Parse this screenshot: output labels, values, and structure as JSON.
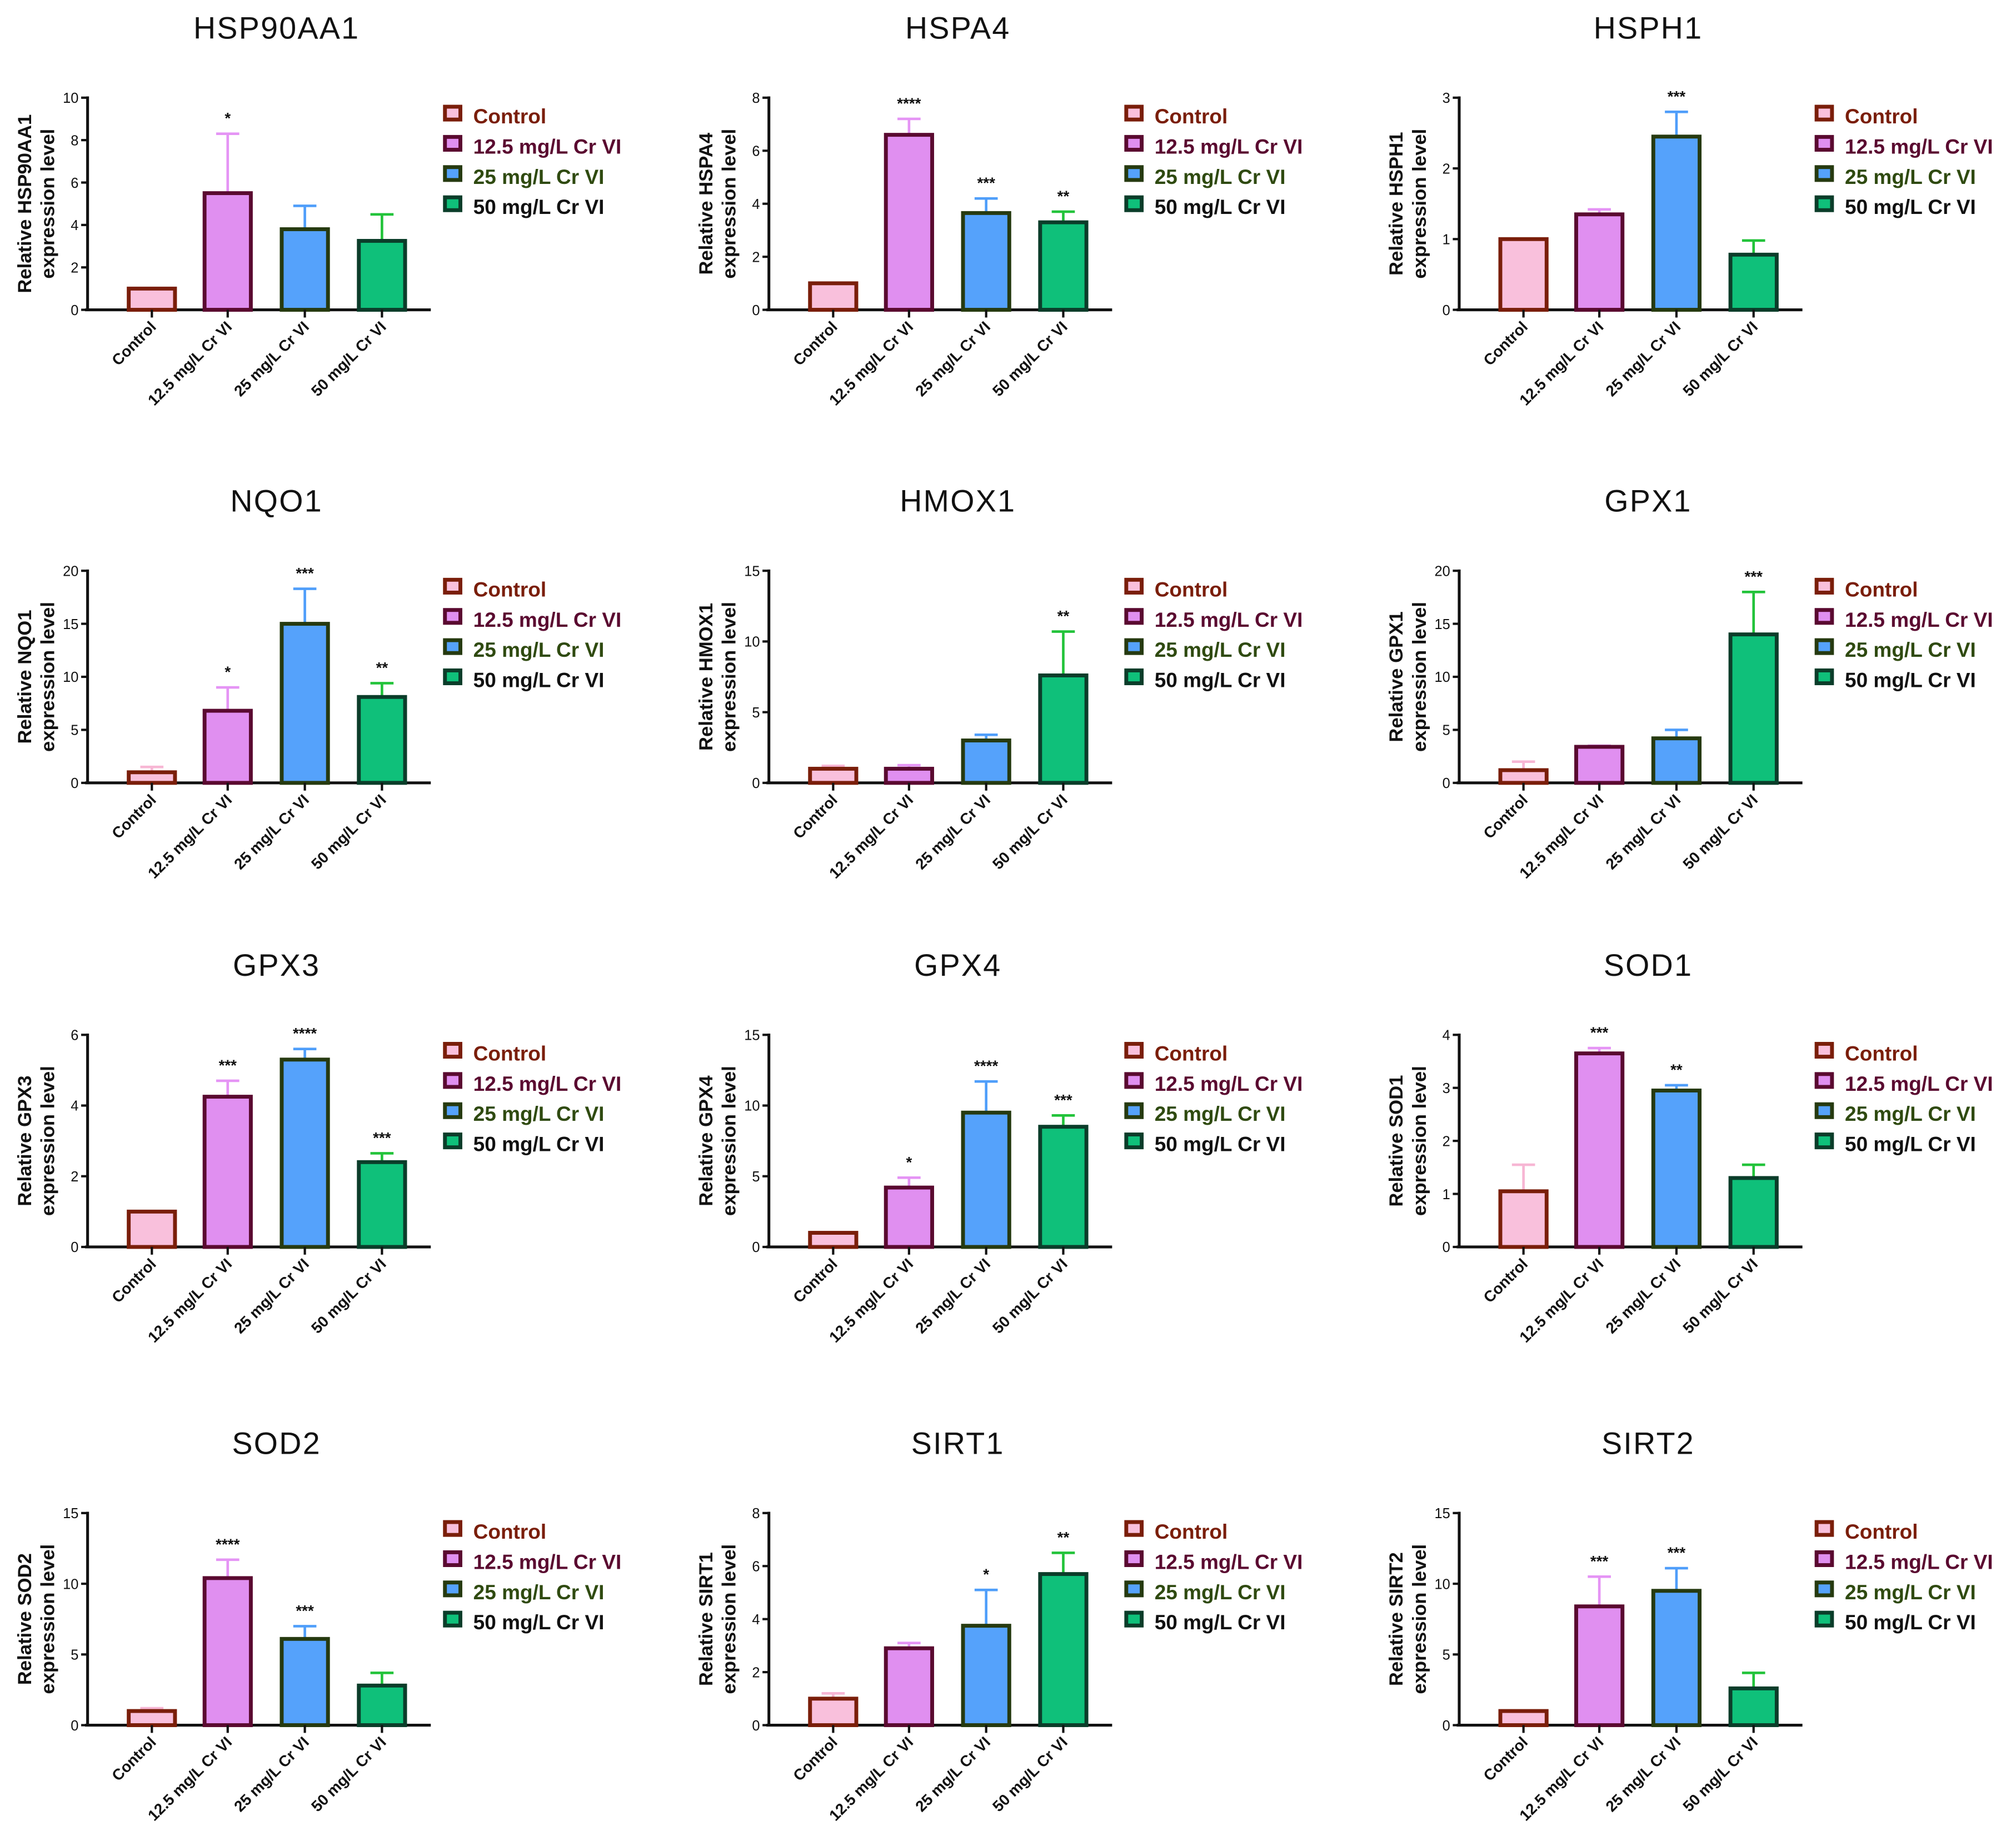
{
  "legend": {
    "items": [
      "Control",
      "12.5 mg/L Cr VI",
      "25 mg/L Cr VI",
      "50 mg/L Cr VI"
    ],
    "text_colors": [
      "#7a1e0a",
      "#5a0a30",
      "#2f4a10",
      "#111111"
    ]
  },
  "colors": {
    "fills": [
      "#f9c0dc",
      "#e08ff0",
      "#55a2fb",
      "#0fc07a"
    ],
    "borders": [
      "#7a1e0a",
      "#5a0a30",
      "#263a10",
      "#0b3d2a"
    ],
    "errors": [
      "#f7b6d4",
      "#e594f5",
      "#4f9efa",
      "#22c33a"
    ]
  },
  "chart_data": [
    {
      "type": "bar",
      "title": "HSP90AA1",
      "ylabel": [
        "Relative  HSP90AA1",
        "expression level"
      ],
      "categories": [
        "Control",
        "12.5 mg/L Cr VI",
        "25 mg/L Cr VI",
        "50 mg/L Cr VI"
      ],
      "values": [
        1,
        5.5,
        3.8,
        3.25
      ],
      "error_upper": [
        1,
        8.3,
        4.9,
        4.5
      ],
      "significance": [
        "",
        "*",
        "",
        ""
      ],
      "ylim": [
        0,
        10
      ],
      "yticks": [
        0,
        2,
        4,
        6,
        8,
        10
      ]
    },
    {
      "type": "bar",
      "title": "HSPA4",
      "ylabel": [
        "Relative  HSPA4",
        "expression level"
      ],
      "categories": [
        "Control",
        "12.5 mg/L Cr VI",
        "25 mg/L Cr VI",
        "50 mg/L Cr VI"
      ],
      "values": [
        1,
        6.6,
        3.65,
        3.3
      ],
      "error_upper": [
        1,
        7.2,
        4.2,
        3.7
      ],
      "significance": [
        "",
        "****",
        "***",
        "**"
      ],
      "ylim": [
        0,
        8
      ],
      "yticks": [
        0,
        2,
        4,
        6,
        8
      ]
    },
    {
      "type": "bar",
      "title": "HSPH1",
      "ylabel": [
        "Relative  HSPH1",
        "expression level"
      ],
      "categories": [
        "Control",
        "12.5 mg/L Cr VI",
        "25 mg/L Cr VI",
        "50 mg/L Cr VI"
      ],
      "values": [
        1,
        1.35,
        2.45,
        0.78
      ],
      "error_upper": [
        1,
        1.42,
        2.8,
        0.98
      ],
      "significance": [
        "",
        "",
        "***",
        ""
      ],
      "ylim": [
        0,
        3
      ],
      "yticks": [
        0,
        1,
        2,
        3
      ]
    },
    {
      "type": "bar",
      "title": "NQO1",
      "ylabel": [
        "Relative  NQO1",
        "expression level"
      ],
      "categories": [
        "Control",
        "12.5 mg/L Cr VI",
        "25 mg/L Cr VI",
        "50 mg/L Cr VI"
      ],
      "values": [
        1,
        6.8,
        15,
        8.1
      ],
      "error_upper": [
        1.5,
        9,
        18.3,
        9.4
      ],
      "significance": [
        "",
        "*",
        "***",
        "**"
      ],
      "ylim": [
        0,
        20
      ],
      "yticks": [
        0,
        5,
        10,
        15,
        20
      ]
    },
    {
      "type": "bar",
      "title": "HMOX1",
      "ylabel": [
        "Relative  HMOX1",
        "expression level"
      ],
      "categories": [
        "Control",
        "12.5 mg/L Cr VI",
        "25 mg/L Cr VI",
        "50 mg/L Cr VI"
      ],
      "values": [
        1,
        1,
        3,
        7.6
      ],
      "error_upper": [
        1.2,
        1.25,
        3.4,
        10.7
      ],
      "significance": [
        "",
        "",
        "",
        "**"
      ],
      "ylim": [
        0,
        15
      ],
      "yticks": [
        0,
        5,
        10,
        15
      ]
    },
    {
      "type": "bar",
      "title": "GPX1",
      "ylabel": [
        "Relative  GPX1",
        "expression level"
      ],
      "categories": [
        "Control",
        "12.5 mg/L Cr VI",
        "25 mg/L Cr VI",
        "50 mg/L Cr VI"
      ],
      "values": [
        1.2,
        3.4,
        4.2,
        14
      ],
      "error_upper": [
        2,
        3.5,
        5,
        18
      ],
      "significance": [
        "",
        "",
        "",
        "***"
      ],
      "ylim": [
        0,
        20
      ],
      "yticks": [
        0,
        5,
        10,
        15,
        20
      ]
    },
    {
      "type": "bar",
      "title": "GPX3",
      "ylabel": [
        "Relative  GPX3",
        "expression level"
      ],
      "categories": [
        "Control",
        "12.5 mg/L Cr VI",
        "25 mg/L Cr VI",
        "50 mg/L Cr VI"
      ],
      "values": [
        1,
        4.25,
        5.3,
        2.4
      ],
      "error_upper": [
        1,
        4.7,
        5.6,
        2.65
      ],
      "significance": [
        "",
        "***",
        "****",
        "***"
      ],
      "ylim": [
        0,
        6
      ],
      "yticks": [
        0,
        2,
        4,
        6
      ]
    },
    {
      "type": "bar",
      "title": "GPX4",
      "ylabel": [
        "Relative  GPX4",
        "expression level"
      ],
      "categories": [
        "Control",
        "12.5 mg/L Cr VI",
        "25 mg/L Cr VI",
        "50 mg/L Cr VI"
      ],
      "values": [
        1,
        4.2,
        9.5,
        8.5
      ],
      "error_upper": [
        1,
        4.9,
        11.7,
        9.3
      ],
      "significance": [
        "",
        "*",
        "****",
        "***"
      ],
      "ylim": [
        0,
        15
      ],
      "yticks": [
        0,
        5,
        10,
        15
      ]
    },
    {
      "type": "bar",
      "title": "SOD1",
      "ylabel": [
        "Relative  SOD1",
        "expression level"
      ],
      "categories": [
        "Control",
        "12.5 mg/L Cr VI",
        "25 mg/L Cr VI",
        "50 mg/L Cr VI"
      ],
      "values": [
        1.05,
        3.65,
        2.95,
        1.3
      ],
      "error_upper": [
        1.55,
        3.75,
        3.05,
        1.55
      ],
      "significance": [
        "",
        "***",
        "**",
        ""
      ],
      "ylim": [
        0,
        4
      ],
      "yticks": [
        0,
        1,
        2,
        3,
        4
      ]
    },
    {
      "type": "bar",
      "title": "SOD2",
      "ylabel": [
        "Relative  SOD2",
        "expression level"
      ],
      "categories": [
        "Control",
        "12.5 mg/L Cr VI",
        "25 mg/L Cr VI",
        "50 mg/L Cr VI"
      ],
      "values": [
        1,
        10.4,
        6.1,
        2.8
      ],
      "error_upper": [
        1.2,
        11.7,
        7,
        3.7
      ],
      "significance": [
        "",
        "****",
        "***",
        ""
      ],
      "ylim": [
        0,
        15
      ],
      "yticks": [
        0,
        5,
        10,
        15
      ]
    },
    {
      "type": "bar",
      "title": "SIRT1",
      "ylabel": [
        "Relative  SIRT1",
        "expression level"
      ],
      "categories": [
        "Control",
        "12.5 mg/L Cr VI",
        "25 mg/L Cr VI",
        "50 mg/L Cr VI"
      ],
      "values": [
        1,
        2.9,
        3.75,
        5.7
      ],
      "error_upper": [
        1.2,
        3.1,
        5.1,
        6.5
      ],
      "significance": [
        "",
        "",
        "*",
        "**"
      ],
      "ylim": [
        0,
        8
      ],
      "yticks": [
        0,
        2,
        4,
        6,
        8
      ]
    },
    {
      "type": "bar",
      "title": "SIRT2",
      "ylabel": [
        "Relative  SIRT2",
        "expression level"
      ],
      "categories": [
        "Control",
        "12.5 mg/L Cr VI",
        "25 mg/L Cr VI",
        "50 mg/L Cr VI"
      ],
      "values": [
        1,
        8.4,
        9.5,
        2.6
      ],
      "error_upper": [
        1,
        10.5,
        11.1,
        3.7
      ],
      "significance": [
        "",
        "***",
        "***",
        ""
      ],
      "ylim": [
        0,
        15
      ],
      "yticks": [
        0,
        5,
        10,
        15
      ]
    }
  ]
}
